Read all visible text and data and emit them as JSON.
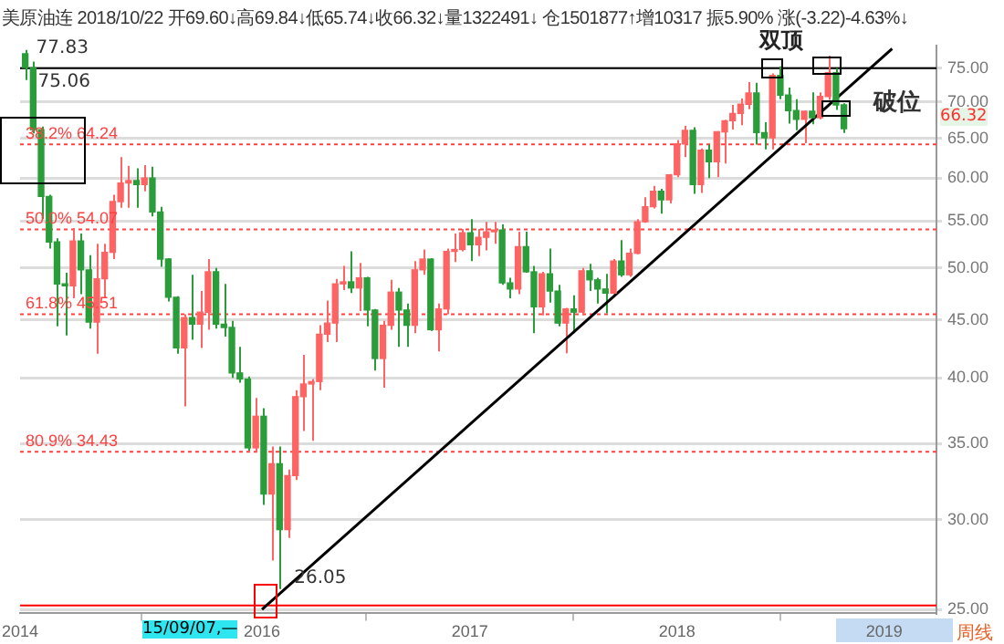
{
  "chart_data": {
    "type": "candlestick",
    "title": "美原油连 2018/10/22 开69.60↓高69.84↓低65.74↓收66.32↓量1322491↓ 仓1501877↑增10317 振5.90% 涨(-3.22)-4.63%↓",
    "x": [
      "2014-11-10",
      "2014-11-24",
      "2014-12-08",
      "2014-12-22",
      "2015-01-05",
      "2015-01-19",
      "2015-02-02",
      "2015-02-16",
      "2015-03-02",
      "2015-03-16",
      "2015-03-30",
      "2015-04-13",
      "2015-04-27",
      "2015-05-11",
      "2015-05-25",
      "2015-06-08",
      "2015-06-22",
      "2015-07-06",
      "2015-07-20",
      "2015-08-03",
      "2015-08-17",
      "2015-08-31",
      "2015-09-14",
      "2015-09-28",
      "2015-10-12",
      "2015-10-26",
      "2015-11-09",
      "2015-11-23",
      "2015-12-07",
      "2015-12-21",
      "2016-01-04",
      "2016-01-18",
      "2016-02-01",
      "2016-02-15",
      "2016-02-29",
      "2016-03-14",
      "2016-03-28",
      "2016-04-11",
      "2016-04-25",
      "2016-05-09",
      "2016-05-23",
      "2016-06-06",
      "2016-06-20",
      "2016-07-04",
      "2016-07-18",
      "2016-08-01",
      "2016-08-15",
      "2016-08-29",
      "2016-09-12",
      "2016-09-26",
      "2016-10-10",
      "2016-10-24",
      "2016-11-07",
      "2016-11-21",
      "2016-12-05",
      "2016-12-19",
      "2017-01-02",
      "2017-01-16",
      "2017-01-30",
      "2017-02-13",
      "2017-02-27",
      "2017-03-13",
      "2017-03-27",
      "2017-04-10",
      "2017-04-24",
      "2017-05-08",
      "2017-05-22",
      "2017-06-05",
      "2017-06-19",
      "2017-07-03",
      "2017-07-17",
      "2017-07-31",
      "2017-08-14",
      "2017-08-28",
      "2017-09-11",
      "2017-09-25",
      "2017-10-09",
      "2017-10-23",
      "2017-11-06",
      "2017-11-20",
      "2017-12-04",
      "2017-12-18",
      "2018-01-01",
      "2018-01-15",
      "2018-01-29",
      "2018-02-12",
      "2018-02-26",
      "2018-03-12",
      "2018-03-26",
      "2018-04-09",
      "2018-04-23",
      "2018-05-07",
      "2018-05-21",
      "2018-06-04",
      "2018-06-18",
      "2018-07-02",
      "2018-07-16",
      "2018-07-30",
      "2018-08-13",
      "2018-08-27",
      "2018-09-10",
      "2018-09-24",
      "2018-10-08",
      "2018-10-22"
    ],
    "ohlc": [
      [
        77.2,
        77.83,
        73.2,
        75.06
      ],
      [
        75.06,
        76.0,
        65.7,
        66.2
      ],
      [
        66.2,
        66.6,
        55.2,
        57.8
      ],
      [
        57.8,
        58.0,
        52.0,
        52.7
      ],
      [
        52.7,
        53.1,
        44.4,
        48.4
      ],
      [
        48.4,
        49.5,
        43.6,
        48.2
      ],
      [
        48.2,
        54.2,
        47.0,
        52.8
      ],
      [
        52.8,
        53.6,
        47.4,
        49.8
      ],
      [
        49.8,
        51.3,
        44.2,
        44.8
      ],
      [
        44.8,
        52.5,
        42.0,
        48.9
      ],
      [
        48.9,
        52.5,
        47.0,
        51.6
      ],
      [
        51.6,
        58.0,
        50.9,
        57.2
      ],
      [
        57.2,
        62.6,
        56.5,
        59.4
      ],
      [
        59.4,
        61.5,
        56.5,
        59.7
      ],
      [
        59.7,
        61.2,
        56.5,
        59.2
      ],
      [
        59.2,
        61.6,
        58.4,
        60.0
      ],
      [
        60.0,
        61.4,
        55.5,
        56.0
      ],
      [
        56.0,
        56.6,
        50.1,
        50.9
      ],
      [
        50.9,
        51.0,
        46.7,
        47.1
      ],
      [
        47.1,
        47.2,
        42.0,
        42.5
      ],
      [
        42.5,
        45.5,
        37.75,
        45.2
      ],
      [
        45.2,
        49.3,
        43.2,
        44.6
      ],
      [
        44.6,
        47.7,
        42.5,
        45.7
      ],
      [
        45.7,
        50.9,
        44.1,
        49.6
      ],
      [
        49.6,
        50.0,
        44.2,
        44.6
      ],
      [
        44.6,
        48.4,
        43.5,
        44.3
      ],
      [
        44.3,
        44.9,
        40.0,
        40.4
      ],
      [
        40.4,
        42.6,
        39.6,
        39.9
      ],
      [
        39.9,
        40.1,
        34.5,
        34.7
      ],
      [
        34.7,
        38.4,
        34.4,
        37.0
      ],
      [
        37.0,
        37.6,
        30.9,
        31.6
      ],
      [
        31.6,
        34.8,
        27.6,
        33.6
      ],
      [
        33.6,
        34.8,
        26.05,
        29.4
      ],
      [
        29.4,
        33.2,
        28.9,
        32.8
      ],
      [
        32.8,
        39.0,
        32.5,
        38.5
      ],
      [
        38.5,
        41.9,
        35.9,
        39.5
      ],
      [
        39.5,
        39.9,
        35.2,
        39.7
      ],
      [
        39.7,
        44.5,
        39.0,
        43.7
      ],
      [
        43.7,
        46.8,
        43.0,
        44.7
      ],
      [
        44.7,
        48.9,
        43.0,
        48.4
      ],
      [
        48.4,
        50.2,
        47.8,
        48.6
      ],
      [
        48.6,
        51.7,
        47.5,
        48.0
      ],
      [
        48.0,
        50.5,
        45.8,
        49.0
      ],
      [
        49.0,
        49.1,
        44.4,
        45.9
      ],
      [
        45.9,
        46.0,
        40.6,
        41.6
      ],
      [
        41.6,
        44.9,
        39.2,
        44.5
      ],
      [
        44.5,
        48.8,
        44.1,
        47.6
      ],
      [
        47.6,
        48.0,
        42.6,
        45.9
      ],
      [
        45.9,
        46.5,
        42.6,
        44.5
      ],
      [
        44.5,
        50.7,
        43.8,
        49.8
      ],
      [
        49.8,
        51.9,
        49.3,
        50.9
      ],
      [
        50.9,
        51.0,
        44.0,
        44.1
      ],
      [
        44.1,
        46.5,
        42.2,
        46.0
      ],
      [
        46.0,
        52.0,
        45.5,
        51.7
      ],
      [
        51.7,
        53.6,
        50.6,
        51.9
      ],
      [
        51.9,
        54.1,
        51.7,
        53.7
      ],
      [
        53.7,
        55.2,
        50.7,
        52.4
      ],
      [
        52.4,
        54.1,
        51.2,
        53.2
      ],
      [
        53.2,
        54.9,
        51.8,
        53.8
      ],
      [
        53.8,
        54.9,
        52.5,
        54.0
      ],
      [
        54.0,
        54.6,
        48.3,
        48.5
      ],
      [
        48.5,
        49.0,
        47.0,
        47.9
      ],
      [
        47.9,
        53.8,
        47.4,
        52.2
      ],
      [
        52.2,
        53.8,
        49.5,
        49.6
      ],
      [
        49.6,
        50.2,
        43.8,
        46.2
      ],
      [
        46.2,
        49.6,
        45.4,
        49.4
      ],
      [
        49.4,
        52.0,
        46.6,
        47.7
      ],
      [
        47.7,
        48.3,
        44.4,
        44.7
      ],
      [
        44.7,
        46.1,
        42.05,
        46.0
      ],
      [
        46.0,
        47.3,
        43.8,
        45.7
      ],
      [
        45.7,
        50.0,
        45.4,
        49.7
      ],
      [
        49.7,
        50.4,
        47.7,
        48.8
      ],
      [
        48.8,
        49.0,
        46.5,
        47.9
      ],
      [
        47.9,
        49.4,
        45.6,
        47.5
      ],
      [
        47.5,
        50.9,
        47.4,
        50.7
      ],
      [
        50.7,
        52.9,
        49.1,
        49.3
      ],
      [
        49.3,
        52.0,
        49.1,
        51.5
      ],
      [
        51.5,
        55.2,
        51.4,
        54.9
      ],
      [
        54.9,
        57.7,
        54.8,
        56.6
      ],
      [
        56.6,
        59.05,
        56.4,
        58.4
      ],
      [
        58.4,
        58.7,
        55.8,
        57.4
      ],
      [
        57.4,
        60.5,
        57.0,
        60.4
      ],
      [
        60.4,
        64.8,
        60.1,
        64.3
      ],
      [
        64.3,
        66.7,
        62.6,
        66.1
      ],
      [
        66.1,
        66.5,
        58.1,
        59.2
      ],
      [
        59.2,
        63.7,
        58.2,
        63.5
      ],
      [
        63.5,
        64.2,
        60.0,
        62.0
      ],
      [
        62.0,
        66.0,
        60.1,
        65.9
      ],
      [
        65.9,
        67.5,
        61.8,
        67.4
      ],
      [
        67.4,
        69.6,
        66.2,
        68.4
      ],
      [
        68.4,
        70.5,
        66.8,
        69.7
      ],
      [
        69.7,
        72.9,
        69.0,
        71.3
      ],
      [
        71.3,
        72.8,
        64.2,
        65.8
      ],
      [
        65.8,
        67.2,
        63.6,
        65.1
      ],
      [
        65.1,
        74.2,
        63.6,
        73.9
      ],
      [
        73.9,
        75.27,
        70.4,
        71.0
      ],
      [
        71.0,
        72.1,
        67.0,
        68.8
      ],
      [
        68.8,
        70.4,
        66.1,
        67.6
      ],
      [
        67.6,
        68.8,
        64.4,
        68.7
      ],
      [
        68.7,
        71.4,
        66.9,
        67.8
      ],
      [
        67.8,
        71.4,
        67.6,
        70.8
      ],
      [
        70.8,
        76.9,
        70.3,
        74.3
      ],
      [
        74.3,
        75.0,
        68.9,
        69.6
      ],
      [
        69.6,
        69.84,
        65.74,
        66.32
      ]
    ],
    "colors": [
      "#2a9d3a",
      "#2a9d3a",
      "#2a9d3a",
      "#2a9d3a",
      "#2a9d3a",
      "#2a9d3a",
      "#ff6464",
      "#2a9d3a",
      "#2a9d3a",
      "#ff6464",
      "#ff6464",
      "#ff6464",
      "#ff6464",
      "#ff6464",
      "#2a9d3a",
      "#ff6464",
      "#2a9d3a",
      "#2a9d3a",
      "#2a9d3a",
      "#2a9d3a",
      "#ff6464",
      "#2a9d3a",
      "#ff6464",
      "#ff6464",
      "#2a9d3a",
      "#2a9d3a",
      "#2a9d3a",
      "#2a9d3a",
      "#2a9d3a",
      "#ff6464",
      "#2a9d3a",
      "#ff6464",
      "#2a9d3a",
      "#ff6464",
      "#ff6464",
      "#ff6464",
      "#ff6464",
      "#ff6464",
      "#ff6464",
      "#ff6464",
      "#ff6464",
      "#2a9d3a",
      "#ff6464",
      "#2a9d3a",
      "#2a9d3a",
      "#ff6464",
      "#ff6464",
      "#2a9d3a",
      "#2a9d3a",
      "#ff6464",
      "#ff6464",
      "#2a9d3a",
      "#ff6464",
      "#ff6464",
      "#ff6464",
      "#ff6464",
      "#2a9d3a",
      "#ff6464",
      "#ff6464",
      "#ff6464",
      "#2a9d3a",
      "#2a9d3a",
      "#ff6464",
      "#2a9d3a",
      "#2a9d3a",
      "#ff6464",
      "#2a9d3a",
      "#2a9d3a",
      "#ff6464",
      "#2a9d3a",
      "#ff6464",
      "#2a9d3a",
      "#2a9d3a",
      "#2a9d3a",
      "#ff6464",
      "#2a9d3a",
      "#ff6464",
      "#ff6464",
      "#ff6464",
      "#ff6464",
      "#2a9d3a",
      "#ff6464",
      "#ff6464",
      "#ff6464",
      "#2a9d3a",
      "#ff6464",
      "#2a9d3a",
      "#ff6464",
      "#ff6464",
      "#ff6464",
      "#ff6464",
      "#ff6464",
      "#2a9d3a",
      "#2a9d3a",
      "#ff6464",
      "#2a9d3a",
      "#2a9d3a",
      "#2a9d3a",
      "#ff6464",
      "#2a9d3a",
      "#ff6464",
      "#ff6464",
      "#2a9d3a",
      "#2a9d3a"
    ],
    "series": [
      {
        "type": "line",
        "color": "#000000",
        "x": [
          "2016-01-01",
          "2019-01-15"
        ],
        "values": [
          25.0,
          78.0
        ]
      }
    ],
    "xlim": [
      "2014-11-01",
      "2019-04-03"
    ],
    "xticks": [
      {
        "value": "2014-11-01",
        "label": "2014"
      },
      {
        "value": "2016-01-01",
        "label": "2016"
      },
      {
        "value": "2017-01-01",
        "label": "2017"
      },
      {
        "value": "2018-01-01",
        "label": "2018"
      },
      {
        "value": "2019-01-01",
        "label": "2019"
      }
    ],
    "ylim": [
      24.8,
      78.5
    ],
    "yticks": [
      {
        "value": 25,
        "label": "25.00"
      },
      {
        "value": 30,
        "label": "30.00"
      },
      {
        "value": 35,
        "label": "35.00"
      },
      {
        "value": 40,
        "label": "40.00"
      },
      {
        "value": 45,
        "label": "45.00"
      },
      {
        "value": 50,
        "label": "50.00"
      },
      {
        "value": 55,
        "label": "55.00"
      },
      {
        "value": 60,
        "label": "60.00"
      },
      {
        "value": 65,
        "label": "65.00"
      },
      {
        "value": 70,
        "label": "70.00"
      },
      {
        "value": 75,
        "label": "75.00"
      }
    ],
    "log": true,
    "grid": "y",
    "ref_lines": [
      {
        "axis": "y",
        "value": 75,
        "color": "#000000",
        "line_style": "solid"
      },
      {
        "axis": "y",
        "value": 64.24,
        "label": "38.2% 64.24",
        "color": "#ff4040",
        "line_style": "dotted"
      },
      {
        "axis": "y",
        "value": 54.07,
        "label": "50.0% 54.07",
        "color": "#ff4040",
        "line_style": "dotted"
      },
      {
        "axis": "y",
        "value": 45.51,
        "label": "61.8% 45.51",
        "color": "#ff4040",
        "line_style": "dotted"
      },
      {
        "axis": "y",
        "value": 34.43,
        "label": "80.9% 34.43",
        "color": "#ff4040",
        "line_style": "dotted"
      },
      {
        "axis": "y",
        "value": 25.2,
        "color": "#ff0000",
        "line_style": "solid"
      }
    ],
    "annotations": [
      {
        "text": "77.83",
        "x": "2014-11-10",
        "y": 77.83
      },
      {
        "text": "75.06",
        "x": "2014-11-10",
        "y": 75.06
      },
      {
        "text": "26.05",
        "x": "2016-02-01",
        "y": 26.05
      },
      {
        "text": "破位",
        "x": "2018-10-22",
        "y": 69.0
      },
      "双顶",
      "66.32",
      "15/09/07,—",
      "周线"
    ]
  }
}
